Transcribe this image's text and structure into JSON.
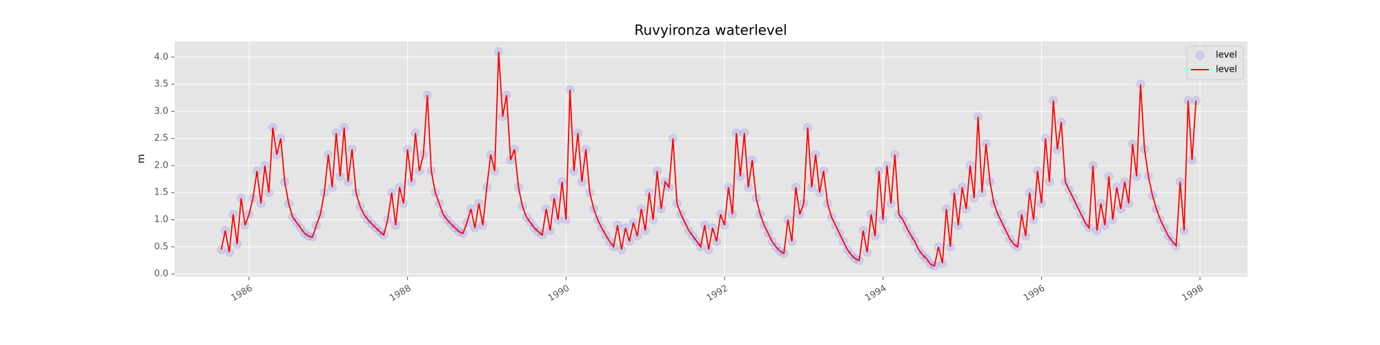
{
  "chart_data": {
    "type": "line",
    "title": "Ruvyironza waterlevel",
    "y_label": "m",
    "x": [
      1985.65,
      1985.7,
      1985.75,
      1985.8,
      1985.85,
      1985.9,
      1985.95,
      1986,
      1986.05,
      1986.1,
      1986.15,
      1986.2,
      1986.25,
      1986.3,
      1986.35,
      1986.4,
      1986.45,
      1986.5,
      1986.55,
      1986.6,
      1986.65,
      1986.7,
      1986.75,
      1986.8,
      1986.85,
      1986.9,
      1986.95,
      1987,
      1987.05,
      1987.1,
      1987.15,
      1987.2,
      1987.25,
      1987.3,
      1987.35,
      1987.4,
      1987.45,
      1987.5,
      1987.55,
      1987.6,
      1987.65,
      1987.7,
      1987.75,
      1987.8,
      1987.85,
      1987.9,
      1987.95,
      1988,
      1988.05,
      1988.1,
      1988.15,
      1988.2,
      1988.25,
      1988.3,
      1988.35,
      1988.4,
      1988.45,
      1988.5,
      1988.55,
      1988.6,
      1988.65,
      1988.7,
      1988.75,
      1988.8,
      1988.85,
      1988.9,
      1988.95,
      1989,
      1989.05,
      1989.1,
      1989.15,
      1989.2,
      1989.25,
      1989.3,
      1989.35,
      1989.4,
      1989.45,
      1989.5,
      1989.55,
      1989.6,
      1989.65,
      1989.7,
      1989.75,
      1989.8,
      1989.85,
      1989.9,
      1989.95,
      1990,
      1990.05,
      1990.1,
      1990.15,
      1990.2,
      1990.25,
      1990.3,
      1990.35,
      1990.4,
      1990.45,
      1990.5,
      1990.55,
      1990.6,
      1990.65,
      1990.7,
      1990.75,
      1990.8,
      1990.85,
      1990.9,
      1990.95,
      1991,
      1991.05,
      1991.1,
      1991.15,
      1991.2,
      1991.25,
      1991.3,
      1991.35,
      1991.4,
      1991.45,
      1991.5,
      1991.55,
      1991.6,
      1991.65,
      1991.7,
      1991.75,
      1991.8,
      1991.85,
      1991.9,
      1991.95,
      1992,
      1992.05,
      1992.1,
      1992.15,
      1992.2,
      1992.25,
      1992.3,
      1992.35,
      1992.4,
      1992.45,
      1992.5,
      1992.55,
      1992.6,
      1992.65,
      1992.7,
      1992.75,
      1992.8,
      1992.85,
      1992.9,
      1992.95,
      1993,
      1993.05,
      1993.1,
      1993.15,
      1993.2,
      1993.25,
      1993.3,
      1993.35,
      1993.4,
      1993.45,
      1993.5,
      1993.55,
      1993.6,
      1993.65,
      1993.7,
      1993.75,
      1993.8,
      1993.85,
      1993.9,
      1993.95,
      1994,
      1994.05,
      1994.1,
      1994.15,
      1994.2,
      1994.25,
      1994.3,
      1994.35,
      1994.4,
      1994.45,
      1994.5,
      1994.55,
      1994.6,
      1994.65,
      1994.7,
      1994.75,
      1994.8,
      1994.85,
      1994.9,
      1994.95,
      1995,
      1995.05,
      1995.1,
      1995.15,
      1995.2,
      1995.25,
      1995.3,
      1995.35,
      1995.4,
      1995.45,
      1995.5,
      1995.55,
      1995.6,
      1995.65,
      1995.7,
      1995.75,
      1995.8,
      1995.85,
      1995.9,
      1995.95,
      1996,
      1996.05,
      1996.1,
      1996.15,
      1996.2,
      1996.25,
      1996.3,
      1996.35,
      1996.4,
      1996.45,
      1996.5,
      1996.55,
      1996.6,
      1996.65,
      1996.7,
      1996.75,
      1996.8,
      1996.85,
      1996.9,
      1996.95,
      1997,
      1997.05,
      1997.1,
      1997.15,
      1997.2,
      1997.25,
      1997.3,
      1997.35,
      1997.4,
      1997.45,
      1997.5,
      1997.55,
      1997.6,
      1997.65,
      1997.7,
      1997.75,
      1997.8,
      1997.85,
      1997.9,
      1997.95
    ],
    "series": [
      {
        "name": "level",
        "style": "marker",
        "color": "#0000ff",
        "alpha": 0.1,
        "values": [
          0.45,
          0.8,
          0.4,
          1.1,
          0.55,
          1.4,
          0.9,
          1.1,
          1.4,
          1.9,
          1.3,
          2.0,
          1.5,
          2.7,
          2.2,
          2.5,
          1.7,
          1.3,
          1.05,
          0.95,
          0.85,
          0.75,
          0.7,
          0.68,
          0.9,
          1.1,
          1.5,
          2.2,
          1.6,
          2.6,
          1.8,
          2.7,
          1.7,
          2.3,
          1.5,
          1.25,
          1.1,
          1.0,
          0.92,
          0.85,
          0.78,
          0.72,
          1.0,
          1.5,
          0.9,
          1.6,
          1.3,
          2.3,
          1.7,
          2.6,
          1.9,
          2.2,
          3.3,
          1.9,
          1.5,
          1.3,
          1.1,
          1.0,
          0.92,
          0.85,
          0.78,
          0.75,
          0.95,
          1.2,
          0.85,
          1.3,
          0.9,
          1.6,
          2.2,
          1.9,
          4.1,
          2.9,
          3.3,
          2.1,
          2.3,
          1.6,
          1.25,
          1.05,
          0.95,
          0.85,
          0.78,
          0.72,
          1.2,
          0.8,
          1.4,
          1.0,
          1.7,
          1.0,
          3.4,
          1.9,
          2.6,
          1.7,
          2.3,
          1.5,
          1.2,
          1.0,
          0.85,
          0.72,
          0.6,
          0.5,
          0.9,
          0.45,
          0.85,
          0.6,
          0.95,
          0.7,
          1.2,
          0.8,
          1.5,
          1.0,
          1.9,
          1.2,
          1.7,
          1.6,
          2.5,
          1.3,
          1.1,
          0.95,
          0.8,
          0.7,
          0.6,
          0.5,
          0.9,
          0.45,
          0.85,
          0.6,
          1.1,
          0.9,
          1.6,
          1.1,
          2.6,
          1.8,
          2.6,
          1.6,
          2.1,
          1.4,
          1.1,
          0.9,
          0.75,
          0.6,
          0.5,
          0.42,
          0.38,
          1.0,
          0.6,
          1.6,
          1.1,
          1.3,
          2.7,
          1.6,
          2.2,
          1.5,
          1.9,
          1.3,
          1.05,
          0.9,
          0.75,
          0.6,
          0.45,
          0.35,
          0.28,
          0.25,
          0.8,
          0.4,
          1.1,
          0.7,
          1.9,
          1.0,
          2.0,
          1.3,
          2.2,
          1.1,
          1.0,
          0.85,
          0.72,
          0.6,
          0.45,
          0.35,
          0.28,
          0.18,
          0.15,
          0.5,
          0.2,
          1.2,
          0.5,
          1.5,
          0.9,
          1.6,
          1.2,
          2.0,
          1.4,
          2.9,
          1.5,
          2.4,
          1.7,
          1.3,
          1.1,
          0.95,
          0.8,
          0.65,
          0.55,
          0.5,
          1.1,
          0.7,
          1.5,
          1.0,
          1.9,
          1.3,
          2.5,
          1.7,
          3.2,
          2.3,
          2.8,
          1.7,
          1.55,
          1.4,
          1.25,
          1.1,
          0.95,
          0.85,
          2.0,
          0.8,
          1.3,
          0.9,
          1.8,
          1.0,
          1.6,
          1.2,
          1.7,
          1.3,
          2.4,
          1.8,
          3.5,
          2.3,
          1.8,
          1.45,
          1.2,
          1.0,
          0.85,
          0.7,
          0.6,
          0.52,
          1.7,
          0.8,
          3.2,
          2.1,
          3.2
        ]
      },
      {
        "name": "level",
        "style": "line",
        "color": "#ff0000",
        "values": [
          0.45,
          0.8,
          0.4,
          1.1,
          0.55,
          1.4,
          0.9,
          1.1,
          1.4,
          1.9,
          1.3,
          2.0,
          1.5,
          2.7,
          2.2,
          2.5,
          1.7,
          1.3,
          1.05,
          0.95,
          0.85,
          0.75,
          0.7,
          0.68,
          0.9,
          1.1,
          1.5,
          2.2,
          1.6,
          2.6,
          1.8,
          2.7,
          1.7,
          2.3,
          1.5,
          1.25,
          1.1,
          1.0,
          0.92,
          0.85,
          0.78,
          0.72,
          1.0,
          1.5,
          0.9,
          1.6,
          1.3,
          2.3,
          1.7,
          2.6,
          1.9,
          2.2,
          3.3,
          1.9,
          1.5,
          1.3,
          1.1,
          1.0,
          0.92,
          0.85,
          0.78,
          0.75,
          0.95,
          1.2,
          0.85,
          1.3,
          0.9,
          1.6,
          2.2,
          1.9,
          4.1,
          2.9,
          3.3,
          2.1,
          2.3,
          1.6,
          1.25,
          1.05,
          0.95,
          0.85,
          0.78,
          0.72,
          1.2,
          0.8,
          1.4,
          1.0,
          1.7,
          1.0,
          3.4,
          1.9,
          2.6,
          1.7,
          2.3,
          1.5,
          1.2,
          1.0,
          0.85,
          0.72,
          0.6,
          0.5,
          0.9,
          0.45,
          0.85,
          0.6,
          0.95,
          0.7,
          1.2,
          0.8,
          1.5,
          1.0,
          1.9,
          1.2,
          1.7,
          1.6,
          2.5,
          1.3,
          1.1,
          0.95,
          0.8,
          0.7,
          0.6,
          0.5,
          0.9,
          0.45,
          0.85,
          0.6,
          1.1,
          0.9,
          1.6,
          1.1,
          2.6,
          1.8,
          2.6,
          1.6,
          2.1,
          1.4,
          1.1,
          0.9,
          0.75,
          0.6,
          0.5,
          0.42,
          0.38,
          1.0,
          0.6,
          1.6,
          1.1,
          1.3,
          2.7,
          1.6,
          2.2,
          1.5,
          1.9,
          1.3,
          1.05,
          0.9,
          0.75,
          0.6,
          0.45,
          0.35,
          0.28,
          0.25,
          0.8,
          0.4,
          1.1,
          0.7,
          1.9,
          1.0,
          2.0,
          1.3,
          2.2,
          1.1,
          1.0,
          0.85,
          0.72,
          0.6,
          0.45,
          0.35,
          0.28,
          0.18,
          0.15,
          0.5,
          0.2,
          1.2,
          0.5,
          1.5,
          0.9,
          1.6,
          1.2,
          2.0,
          1.4,
          2.9,
          1.5,
          2.4,
          1.7,
          1.3,
          1.1,
          0.95,
          0.8,
          0.65,
          0.55,
          0.5,
          1.1,
          0.7,
          1.5,
          1.0,
          1.9,
          1.3,
          2.5,
          1.7,
          3.2,
          2.3,
          2.8,
          1.7,
          1.55,
          1.4,
          1.25,
          1.1,
          0.95,
          0.85,
          2.0,
          0.8,
          1.3,
          0.9,
          1.8,
          1.0,
          1.6,
          1.2,
          1.7,
          1.3,
          2.4,
          1.8,
          3.5,
          2.3,
          1.8,
          1.45,
          1.2,
          1.0,
          0.85,
          0.7,
          0.6,
          0.52,
          1.7,
          0.8,
          3.2,
          2.1,
          3.2
        ]
      }
    ],
    "xlim": [
      1985.06,
      1998.6
    ],
    "ylim": [
      -0.05,
      4.29
    ],
    "xticks": [
      1986,
      1988,
      1990,
      1992,
      1994,
      1996,
      1998
    ],
    "yticks": [
      {
        "value": 0,
        "label": "0.0"
      },
      0.5,
      {
        "value": 1,
        "label": "1.0"
      },
      1.5,
      {
        "value": 2,
        "label": "2.0"
      },
      2.5,
      {
        "value": 3,
        "label": "3.0"
      },
      3.5,
      {
        "value": 4,
        "label": "4.0"
      }
    ],
    "grid": true,
    "legend": "upper right"
  }
}
